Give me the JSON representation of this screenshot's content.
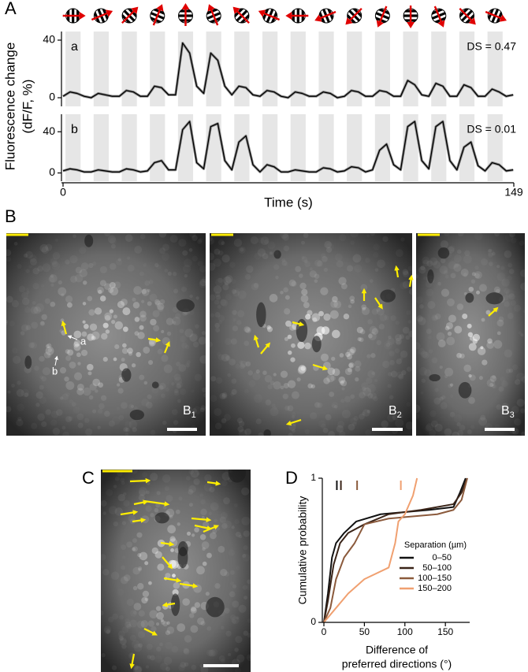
{
  "chart_data": [
    {
      "type": "line",
      "panel_label": "A",
      "x": [
        0,
        2.325,
        4.65,
        6.975,
        9.3,
        11.625,
        13.95,
        16.275,
        18.6,
        20.925,
        23.25,
        25.575,
        27.9,
        30.225,
        32.55,
        34.875,
        37.2,
        39.525,
        41.85,
        44.175,
        46.5,
        48.825,
        51.15,
        53.475,
        55.8,
        58.125,
        60.45,
        62.775,
        65.1,
        67.425,
        69.75,
        72.075,
        74.4,
        76.725,
        79.05,
        81.375,
        83.7,
        86.025,
        88.35,
        90.675,
        93,
        95.325,
        97.65,
        99.975,
        102.3,
        104.625,
        106.95,
        109.275,
        111.6,
        113.925,
        116.25,
        118.575,
        120.9,
        123.225,
        125.55,
        127.875,
        130.2,
        132.525,
        134.85,
        137.175,
        139.5,
        141.825,
        144.15,
        146.475,
        148.8
      ],
      "xlim": [
        0,
        149
      ],
      "xticks": [
        0,
        149
      ],
      "xlabel": "Time (s)",
      "ylabel": [
        "Fluorescence change",
        "(dF/F, %)"
      ],
      "stimulus_start": [
        0.8,
        10.1,
        19.4,
        28.7,
        38,
        47.3,
        56.6,
        65.9,
        75.2,
        84.5,
        93.8,
        103.1,
        112.4,
        121.7,
        131,
        140.3
      ],
      "stimulus_duration": 5,
      "directions": [
        0,
        22.5,
        45,
        67.5,
        90,
        112.5,
        135,
        157.5,
        180,
        202.5,
        225,
        247.5,
        270,
        292.5,
        315,
        337.5
      ],
      "series": [
        {
          "name": "a",
          "annotation": "DS = 0.47",
          "color": "#000000",
          "ylim": [
            -6,
            46
          ],
          "yticks": [
            0,
            40
          ],
          "values": [
            1,
            4,
            3,
            1,
            0,
            3,
            2,
            1,
            1,
            5,
            4,
            1,
            1,
            8,
            7,
            2,
            2,
            38,
            31,
            8,
            3,
            31,
            26,
            8,
            2,
            8,
            7,
            2,
            1,
            5,
            4,
            1,
            0,
            4,
            3,
            1,
            1,
            4,
            3,
            0,
            1,
            5,
            4,
            1,
            1,
            5,
            4,
            1,
            1,
            12,
            9,
            2,
            1,
            10,
            8,
            1,
            1,
            9,
            7,
            1,
            1,
            6,
            4,
            1,
            2
          ]
        },
        {
          "name": "b",
          "annotation": "DS = 0.01",
          "color": "#000000",
          "ylim": [
            -8,
            57
          ],
          "yticks": [
            0,
            40
          ],
          "values": [
            2,
            4,
            3,
            1,
            1,
            3,
            2,
            1,
            1,
            4,
            3,
            1,
            2,
            10,
            12,
            3,
            3,
            42,
            50,
            10,
            4,
            45,
            48,
            12,
            3,
            30,
            36,
            8,
            1,
            8,
            6,
            1,
            1,
            3,
            2,
            1,
            1,
            5,
            4,
            1,
            2,
            6,
            5,
            1,
            3,
            22,
            28,
            8,
            3,
            45,
            50,
            12,
            4,
            45,
            50,
            12,
            3,
            25,
            30,
            7,
            2,
            10,
            8,
            2,
            3
          ]
        }
      ]
    },
    {
      "type": "line",
      "panel_label": "D",
      "xlim": [
        0,
        180
      ],
      "xticks": [
        0,
        50,
        100,
        150
      ],
      "ylim": [
        0,
        1
      ],
      "yticks": [
        0,
        1
      ],
      "xlabel": [
        "Difference of",
        "preferred directions (°)"
      ],
      "ylabel": "Cumulative probability",
      "legend_title": "Separation (µm)",
      "legend": "lower right",
      "series": [
        {
          "name": "0–50",
          "color": "#111111",
          "median": 16,
          "x": [
            0,
            5,
            10,
            15,
            25,
            40,
            70,
            130,
            160,
            168,
            175
          ],
          "values": [
            0,
            0.2,
            0.45,
            0.55,
            0.62,
            0.7,
            0.75,
            0.78,
            0.8,
            0.9,
            1
          ]
        },
        {
          "name": "50–100",
          "color": "#3a2418",
          "median": 21,
          "x": [
            0,
            5,
            12,
            20,
            30,
            50,
            80,
            120,
            160,
            170,
            177
          ],
          "values": [
            0,
            0.15,
            0.4,
            0.55,
            0.62,
            0.68,
            0.75,
            0.78,
            0.82,
            0.9,
            1
          ]
        },
        {
          "name": "100–150",
          "color": "#8b5a3c",
          "median": 41,
          "x": [
            0,
            8,
            15,
            25,
            38,
            50,
            80,
            140,
            160,
            170,
            177
          ],
          "values": [
            0,
            0.1,
            0.3,
            0.45,
            0.55,
            0.68,
            0.72,
            0.75,
            0.78,
            0.85,
            1
          ]
        },
        {
          "name": "150–200",
          "color": "#f0a070",
          "median": 95,
          "x": [
            0,
            15,
            30,
            50,
            80,
            88,
            92,
            100,
            110,
            115
          ],
          "values": [
            0,
            0.1,
            0.2,
            0.3,
            0.38,
            0.55,
            0.7,
            0.75,
            0.88,
            1
          ]
        }
      ]
    }
  ],
  "images": {
    "B": {
      "panel_label": "B",
      "cell_labels": [
        "a",
        "b"
      ],
      "images": [
        {
          "label": "B",
          "sub": "1"
        },
        {
          "label": "B",
          "sub": "2"
        },
        {
          "label": "B",
          "sub": "3"
        }
      ]
    },
    "C": {
      "panel_label": "C"
    }
  }
}
